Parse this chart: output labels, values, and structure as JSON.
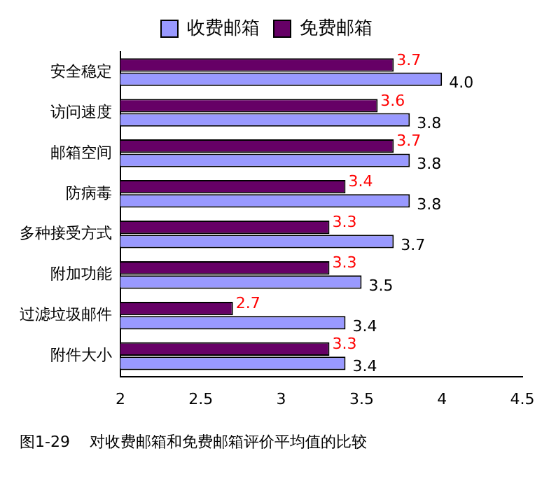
{
  "chart_data": {
    "type": "bar",
    "orientation": "horizontal",
    "categories": [
      "安全稳定",
      "访问速度",
      "邮箱空间",
      "防病毒",
      "多种接受方式",
      "附加功能",
      "过滤垃圾邮件",
      "附件大小"
    ],
    "series": [
      {
        "name": "收费邮箱",
        "color": "#9999ff",
        "values": [
          4.0,
          3.8,
          3.8,
          3.8,
          3.7,
          3.5,
          3.4,
          3.4
        ],
        "value_labels": [
          "4.0",
          "3.8",
          "3.8",
          "3.8",
          "3.7",
          "3.5",
          "3.4",
          "3.4"
        ]
      },
      {
        "name": "免费邮箱",
        "color": "#660066",
        "values": [
          3.7,
          3.6,
          3.7,
          3.4,
          3.3,
          3.3,
          2.7,
          3.3
        ],
        "value_labels": [
          "3.7",
          "3.6",
          "3.7",
          "3.4",
          "3.3",
          "3.3",
          "2.7",
          "3.3"
        ]
      }
    ],
    "xlim": [
      2,
      4.5
    ],
    "xticks": [
      2,
      2.5,
      3,
      3.5,
      4,
      4.5
    ],
    "legend": "top",
    "grid": false,
    "annotations": [
      "图1-29    对收费邮箱和免费邮箱评价平均值的比较"
    ]
  }
}
